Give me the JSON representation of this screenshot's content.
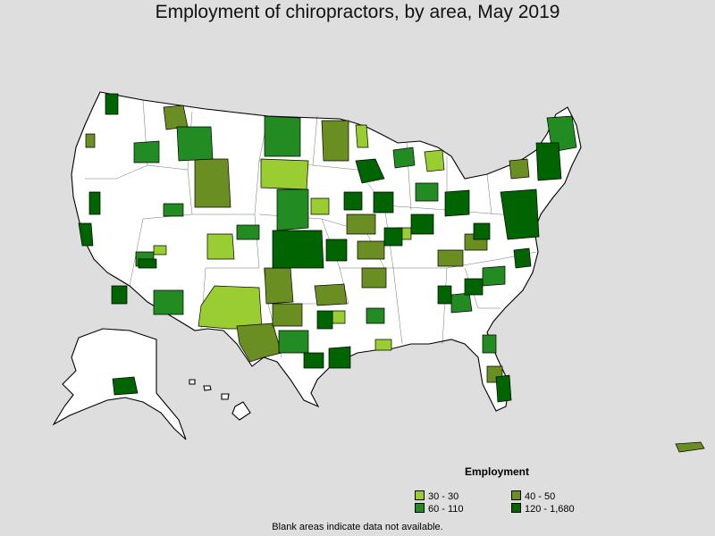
{
  "title": "Employment of chiropractors, by area, May 2019",
  "legend": {
    "title": "Employment",
    "items": [
      {
        "label": "30 - 30",
        "color": "#9acd32"
      },
      {
        "label": "40 - 50",
        "color": "#6b8e23"
      },
      {
        "label": "60 - 110",
        "color": "#228b22"
      },
      {
        "label": "120 - 1,680",
        "color": "#006400"
      }
    ]
  },
  "note": "Blank areas indicate data not available.",
  "colors": {
    "background": "#dedede",
    "no_data": "#ffffff",
    "border": "#000000"
  }
}
